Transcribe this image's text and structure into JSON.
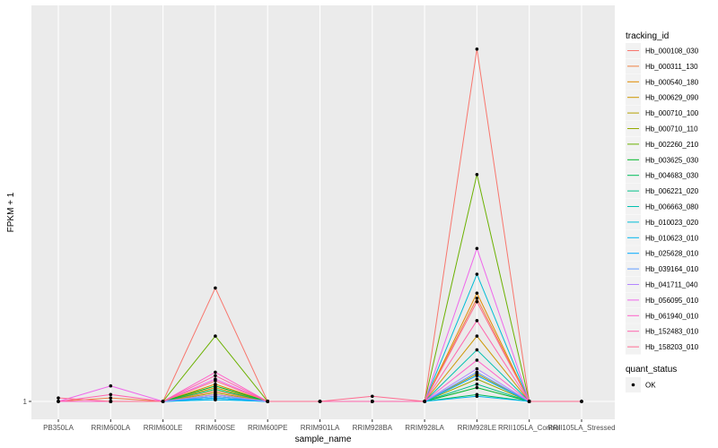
{
  "chart_data": {
    "type": "line",
    "xlabel": "sample_name",
    "ylabel": "FPKM + 1",
    "categories": [
      "PB350LA",
      "RRIM600LA",
      "RRIM600LE",
      "RRIM600SE",
      "RRIM600PE",
      "RRIM901LA",
      "RRIM928BA",
      "RRIM928LA",
      "RRIM928LE",
      "RRII105LA_Control",
      "RRII105LA_Stressed"
    ],
    "y_ticks": [
      {
        "value": 1,
        "label": "1"
      }
    ],
    "ylim": [
      1,
      23
    ],
    "grid": true,
    "legend_position": "right",
    "legend_title": "tracking_id",
    "series": [
      {
        "name": "Hb_000108_030",
        "color": "#F8766D",
        "values": [
          1,
          1,
          1,
          7.6,
          1,
          1,
          1,
          1,
          21.5,
          1,
          1
        ]
      },
      {
        "name": "Hb_000311_130",
        "color": "#EE8043",
        "values": [
          1,
          1.2,
          1,
          1.6,
          1,
          1,
          1,
          1,
          7.0,
          1,
          1
        ]
      },
      {
        "name": "Hb_000540_180",
        "color": "#E18A00",
        "values": [
          1,
          1,
          1,
          2.0,
          1,
          1,
          1,
          1,
          7.3,
          1,
          1
        ]
      },
      {
        "name": "Hb_000629_090",
        "color": "#CD9600",
        "values": [
          1,
          1,
          1,
          1.8,
          1,
          1,
          1,
          1,
          4.8,
          1,
          1
        ]
      },
      {
        "name": "Hb_000710_100",
        "color": "#B4A000",
        "values": [
          1,
          1,
          1,
          1.5,
          1,
          1,
          1,
          1,
          2.6,
          1,
          1
        ]
      },
      {
        "name": "Hb_000710_110",
        "color": "#95A900",
        "values": [
          1,
          1,
          1,
          1.4,
          1,
          1,
          1,
          1,
          2.3,
          1,
          1
        ]
      },
      {
        "name": "Hb_002260_210",
        "color": "#6BB100",
        "values": [
          1,
          1,
          1,
          4.8,
          1,
          1,
          1,
          1,
          14.2,
          1,
          1
        ]
      },
      {
        "name": "Hb_003625_030",
        "color": "#00B82B",
        "values": [
          1,
          1,
          1,
          1.9,
          1,
          1,
          1,
          1,
          1.8,
          1,
          1
        ]
      },
      {
        "name": "Hb_004683_030",
        "color": "#00BC59",
        "values": [
          1,
          1,
          1,
          1.7,
          1,
          1,
          1,
          1,
          1.4,
          1,
          1
        ]
      },
      {
        "name": "Hb_006221_020",
        "color": "#00C087",
        "values": [
          1,
          1,
          1,
          1.3,
          1,
          1,
          1,
          1,
          2.0,
          1,
          1
        ]
      },
      {
        "name": "Hb_006663_080",
        "color": "#00C0AF",
        "values": [
          1,
          1,
          1,
          1.2,
          1,
          1,
          1,
          1,
          4.0,
          1,
          1
        ]
      },
      {
        "name": "Hb_010023_020",
        "color": "#00BCD6",
        "values": [
          1,
          1,
          1,
          1.1,
          1,
          1,
          1,
          1,
          8.4,
          1,
          1
        ]
      },
      {
        "name": "Hb_010623_010",
        "color": "#00B5EE",
        "values": [
          1,
          1,
          1,
          1.1,
          1,
          1,
          1,
          1,
          1.3,
          1,
          1
        ]
      },
      {
        "name": "Hb_025628_010",
        "color": "#00A9FF",
        "values": [
          1,
          1,
          1,
          1.2,
          1,
          1,
          1,
          1,
          2.5,
          1,
          1
        ]
      },
      {
        "name": "Hb_039164_010",
        "color": "#619CFF",
        "values": [
          1,
          1,
          1,
          1.3,
          1,
          1,
          1,
          1,
          2.7,
          1,
          1
        ]
      },
      {
        "name": "Hb_041711_040",
        "color": "#B385FF",
        "values": [
          1,
          1,
          1,
          1.4,
          1,
          1,
          1,
          1,
          2.9,
          1,
          1
        ]
      },
      {
        "name": "Hb_056095_010",
        "color": "#EF67EB",
        "values": [
          1,
          1.9,
          1,
          2.3,
          1,
          1,
          1,
          1,
          9.9,
          1,
          1
        ]
      },
      {
        "name": "Hb_061940_010",
        "color": "#FF61C9",
        "values": [
          1,
          1,
          1,
          2.7,
          1,
          1,
          1,
          1,
          3.4,
          1,
          1
        ]
      },
      {
        "name": "Hb_152483_010",
        "color": "#FF65AE",
        "values": [
          1,
          1.4,
          1,
          2.5,
          1,
          1,
          1,
          1,
          5.7,
          1,
          1
        ]
      },
      {
        "name": "Hb_158203_010",
        "color": "#FF6C91",
        "values": [
          1.2,
          1,
          1,
          2.2,
          1,
          1,
          1.3,
          1,
          6.8,
          1,
          1
        ]
      }
    ],
    "points": {
      "color": "#000000"
    },
    "legend2": {
      "title": "quant_status",
      "entries": [
        "OK"
      ]
    }
  }
}
